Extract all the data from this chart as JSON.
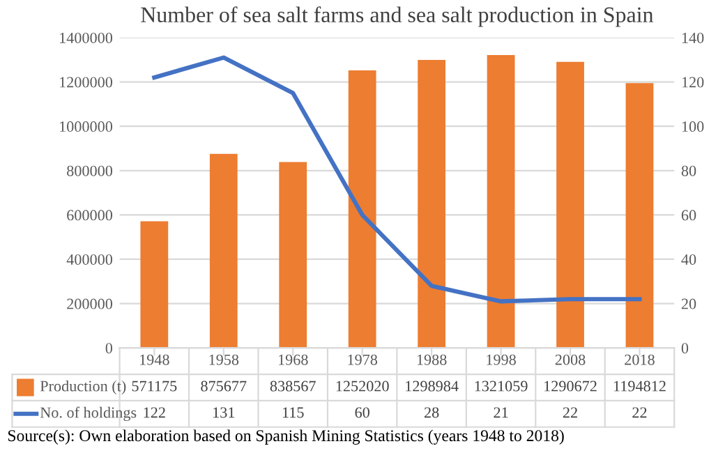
{
  "chart_data": {
    "type": "bar",
    "title": "Number of sea salt farms and sea salt production in Spain",
    "categories": [
      "1948",
      "1958",
      "1968",
      "1978",
      "1988",
      "1998",
      "2008",
      "2018"
    ],
    "series": [
      {
        "name": "Production (t)",
        "color": "#ed7d31",
        "values": [
          571175,
          875677,
          838567,
          1252020,
          1298984,
          1321059,
          1290672,
          1194812
        ]
      },
      {
        "name": "No. of holdings",
        "color": "#4472c4",
        "type": "line",
        "axis": "y2",
        "values": [
          122,
          131,
          115,
          60,
          28,
          21,
          22,
          22
        ]
      }
    ],
    "ylim": [
      0,
      1400000
    ],
    "yticks": [
      0,
      200000,
      400000,
      600000,
      800000,
      1000000,
      1200000,
      1400000
    ],
    "y2lim": [
      0,
      140
    ],
    "y2ticks": [
      0,
      20,
      40,
      60,
      80,
      100,
      120,
      140
    ],
    "grid": "y",
    "legend": "bottom",
    "data_labels": true,
    "marker": "none",
    "line_style": "solid",
    "annotations": [
      "Source(s): Own elaboration based on Spanish Mining Statistics (years 1948 to 2018)"
    ]
  }
}
